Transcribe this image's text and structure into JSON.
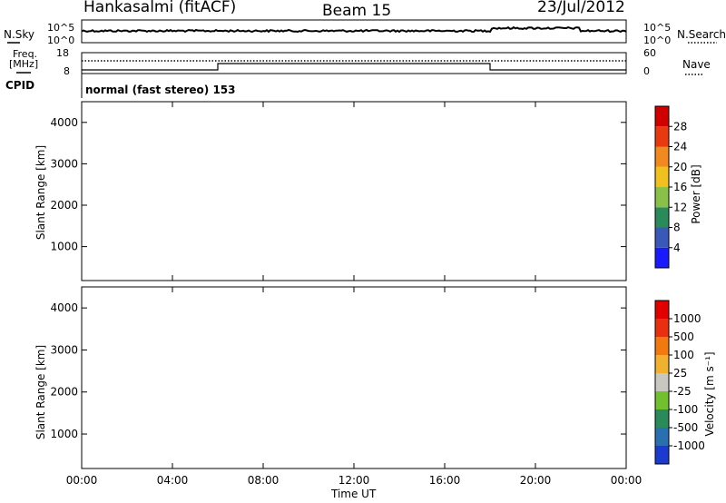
{
  "header": {
    "station": "Hankasalmi (fitACF)",
    "beam": "Beam 15",
    "date": "23/Jul/2012"
  },
  "sky_panel": {
    "left_label": "N.Sky",
    "right_label": "N.Search",
    "left_ticks": [
      "10^5",
      "10^0"
    ],
    "right_ticks": [
      "10^5",
      "10^0"
    ]
  },
  "freq_panel": {
    "left_label_1": "Freq.",
    "left_label_2": "[MHz]",
    "right_label": "Nave",
    "left_ticks": [
      "18",
      "8"
    ],
    "right_ticks": [
      "60",
      "0"
    ]
  },
  "cpid": {
    "label": "CPID",
    "text": "normal (fast stereo) 153"
  },
  "chart_data": [
    {
      "type": "heatmap",
      "name": "power",
      "ylabel": "Slant Range [km]",
      "ylim": [
        180,
        4500
      ],
      "yticks": [
        "1000",
        "2000",
        "3000",
        "4000"
      ],
      "xlim": [
        0,
        24
      ],
      "colorbar": {
        "label": "Power [dB]",
        "ticks": [
          "4",
          "8",
          "12",
          "16",
          "20",
          "24",
          "28"
        ],
        "colors": [
          "#1a1aff",
          "#3a58b8",
          "#2a8a5a",
          "#8ac04a",
          "#f0c020",
          "#f08a20",
          "#e83a10",
          "#d00000"
        ]
      }
    },
    {
      "type": "heatmap",
      "name": "velocity",
      "ylabel": "Slant Range [km]",
      "ylim": [
        180,
        4500
      ],
      "yticks": [
        "1000",
        "2000",
        "3000",
        "4000"
      ],
      "xlim": [
        0,
        24
      ],
      "colorbar": {
        "label": "Velocity [m s⁻¹]",
        "ticks": [
          "1000",
          "500",
          "100",
          "25",
          "-25",
          "-100",
          "-500",
          "-1000"
        ],
        "colors": [
          "#1a3ad0",
          "#2a70b0",
          "#2a8a5a",
          "#70c030",
          "#c8c8c0",
          "#f0b030",
          "#f07a10",
          "#e83010",
          "#e00000"
        ]
      }
    }
  ],
  "xaxis": {
    "label": "Time UT",
    "ticks": [
      "00:00",
      "04:00",
      "08:00",
      "12:00",
      "16:00",
      "20:00",
      "00:00"
    ]
  }
}
